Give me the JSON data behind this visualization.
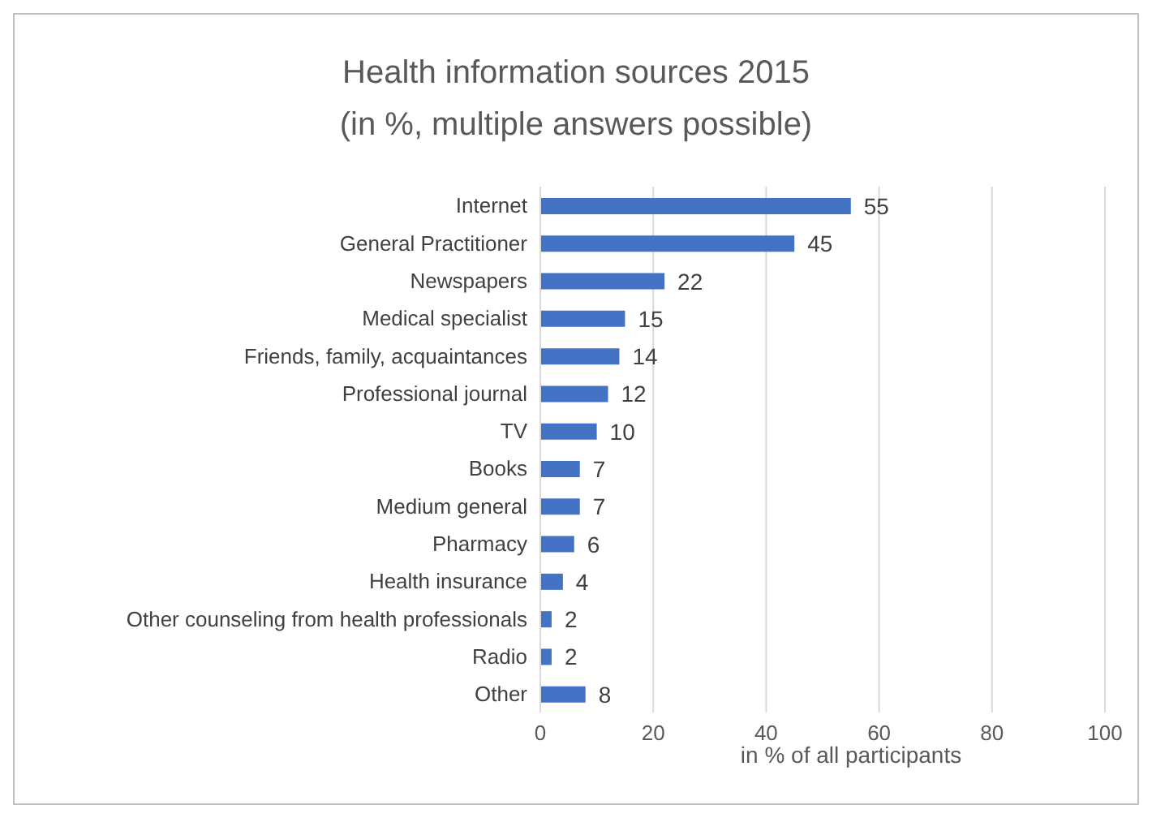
{
  "chart_data": {
    "type": "bar",
    "orientation": "horizontal",
    "title": "Health information sources 2015\n(in %, multiple answers possible)",
    "xlabel": "in % of all participants",
    "categories": [
      "Internet",
      "General Practitioner",
      "Newspapers",
      "Medical specialist",
      "Friends, family, acquaintances",
      "Professional journal",
      "TV",
      "Books",
      "Medium general",
      "Pharmacy",
      "Health insurance",
      "Other counseling from health professionals",
      "Radio",
      "Other"
    ],
    "values": [
      55,
      45,
      22,
      15,
      14,
      12,
      10,
      7,
      7,
      6,
      4,
      2,
      2,
      8
    ],
    "color": "#4472c4",
    "xlim": [
      0,
      100
    ],
    "xticks": [
      0,
      20,
      40,
      60,
      80,
      100
    ],
    "grid": "x",
    "data_labels": true
  }
}
